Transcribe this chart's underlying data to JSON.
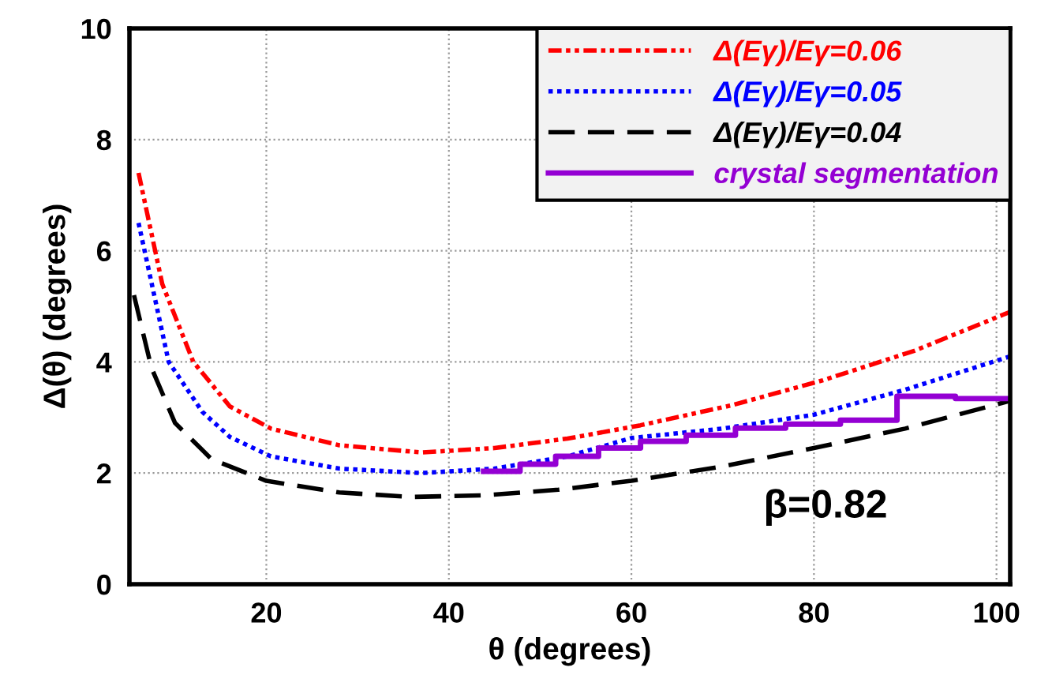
{
  "chart_data": {
    "type": "line",
    "xlabel": "θ (degrees)",
    "ylabel": "Δ(θ) (degrees)",
    "xlim": [
      5,
      101.5
    ],
    "ylim": [
      0,
      10
    ],
    "xticks": [
      20,
      40,
      60,
      80,
      100
    ],
    "yticks": [
      0,
      2,
      4,
      6,
      8,
      10
    ],
    "grid": true,
    "legend": "top right",
    "marker": "none",
    "annotations": [
      "β=0.82"
    ],
    "series": [
      {
        "name": "Δ(Eγ)/Eγ=0.06",
        "color": "#ff0000",
        "line_style": "dashdotdot",
        "x": [
          6,
          8.6,
          12,
          16,
          20.5,
          28,
          37,
          45,
          53,
          61,
          71,
          81,
          91,
          101.5
        ],
        "values": [
          7.4,
          5.4,
          4.0,
          3.2,
          2.8,
          2.5,
          2.37,
          2.45,
          2.62,
          2.86,
          3.22,
          3.67,
          4.2,
          4.9
        ]
      },
      {
        "name": "Δ(Eγ)/Eγ=0.05",
        "color": "#0000ff",
        "line_style": "dotted",
        "x": [
          6,
          9.3,
          13,
          16,
          20.5,
          28,
          37,
          45,
          53,
          60,
          70,
          80,
          90,
          101.5
        ],
        "values": [
          6.5,
          4.0,
          3.1,
          2.65,
          2.3,
          2.08,
          2.0,
          2.08,
          2.3,
          2.63,
          2.8,
          3.05,
          3.5,
          4.1
        ]
      },
      {
        "name": "Δ(Eγ)/Eγ=0.04",
        "color": "#000000",
        "line_style": "dashed",
        "x": [
          5.5,
          7.4,
          10,
          14,
          20,
          28,
          36,
          44,
          52,
          60,
          70,
          80,
          90,
          101.5
        ],
        "values": [
          5.2,
          3.9,
          2.9,
          2.25,
          1.86,
          1.65,
          1.57,
          1.6,
          1.7,
          1.86,
          2.12,
          2.45,
          2.8,
          3.3
        ]
      },
      {
        "name": "crystal segmentation",
        "type": "step",
        "color": "#9400d3",
        "line_style": "solid",
        "x": [
          43.8,
          47.8,
          51.7,
          56.4,
          61,
          66,
          71.4,
          76.9,
          82.9,
          89.1,
          95.5,
          101.5
        ],
        "values": [
          2.03,
          2.16,
          2.3,
          2.45,
          2.57,
          2.68,
          2.81,
          2.88,
          2.95,
          3.38,
          3.34,
          3.34
        ]
      }
    ]
  }
}
